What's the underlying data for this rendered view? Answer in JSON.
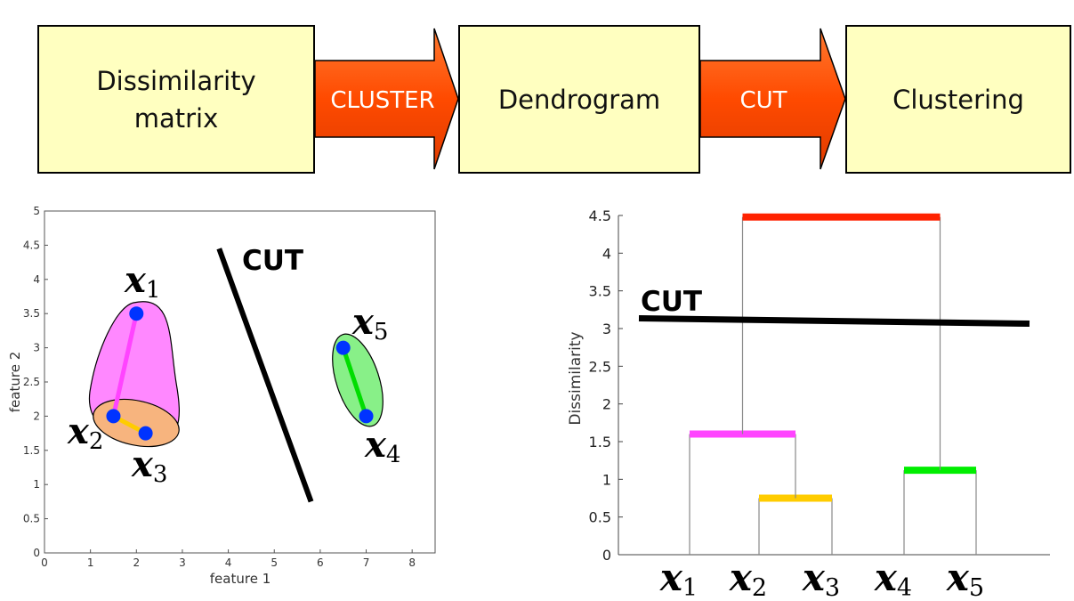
{
  "flow": {
    "box1_line1": "Dissimilarity",
    "box1_line2": "matrix",
    "arrow1": "CLUSTER",
    "box2": "Dendrogram",
    "arrow2": "CUT",
    "box3": "Clustering"
  },
  "scatter": {
    "xlabel": "feature 1",
    "ylabel": "feature 2",
    "xticks": [
      "0",
      "1",
      "2",
      "3",
      "4",
      "5",
      "6",
      "7",
      "8"
    ],
    "yticks": [
      "0",
      "0.5",
      "1",
      "1.5",
      "2",
      "2.5",
      "3",
      "3.5",
      "4",
      "4.5",
      "5"
    ],
    "cut_label": "CUT",
    "point_labels": [
      {
        "name": "x",
        "sub": "1"
      },
      {
        "name": "x",
        "sub": "2"
      },
      {
        "name": "x",
        "sub": "3"
      },
      {
        "name": "x",
        "sub": "4"
      },
      {
        "name": "x",
        "sub": "5"
      }
    ]
  },
  "dendrogram": {
    "ylabel": "Dissimilarity",
    "yticks": [
      "0",
      "0.5",
      "1",
      "1.5",
      "2",
      "2.5",
      "3",
      "3.5",
      "4",
      "4.5"
    ],
    "cut_label": "CUT",
    "leaf_labels": [
      {
        "name": "x",
        "sub": "1"
      },
      {
        "name": "x",
        "sub": "2"
      },
      {
        "name": "x",
        "sub": "3"
      },
      {
        "name": "x",
        "sub": "4"
      },
      {
        "name": "x",
        "sub": "5"
      }
    ]
  },
  "chart_data": [
    {
      "type": "scatter",
      "xlabel": "feature 1",
      "ylabel": "feature 2",
      "xlim": [
        0,
        8.5
      ],
      "ylim": [
        0,
        5
      ],
      "points": [
        {
          "label": "x1",
          "x": 2.0,
          "y": 3.5
        },
        {
          "label": "x2",
          "x": 1.5,
          "y": 2.0
        },
        {
          "label": "x3",
          "x": 2.2,
          "y": 1.75
        },
        {
          "label": "x4",
          "x": 7.0,
          "y": 2.0
        },
        {
          "label": "x5",
          "x": 6.5,
          "y": 3.0
        }
      ],
      "links": [
        {
          "from": "x1",
          "to": "x2",
          "color": "#ff44ff"
        },
        {
          "from": "x2",
          "to": "x3",
          "color": "#ffcc00"
        },
        {
          "from": "x5",
          "to": "x4",
          "color": "#00dd00"
        }
      ],
      "cut_line": {
        "x1": 3.8,
        "y1": 4.45,
        "x2": 5.8,
        "y2": 0.75
      },
      "cluster_colors": {
        "pink": "#ff88ff",
        "orange": "#f7b47e",
        "green": "#88f088"
      }
    },
    {
      "type": "dendrogram",
      "ylabel": "Dissimilarity",
      "ylim": [
        0,
        4.5
      ],
      "leaves": [
        "x1",
        "x2",
        "x3",
        "x4",
        "x5"
      ],
      "merges": [
        {
          "left": "x2",
          "right": "x3",
          "height": 0.75,
          "color": "#ffcc00"
        },
        {
          "left": "x4",
          "right": "x5",
          "height": 1.12,
          "color": "#00ee00"
        },
        {
          "left": "x1",
          "right": "{x2,x3}",
          "height": 1.6,
          "color": "#ff44ff"
        },
        {
          "left": "{x1,x2,x3}",
          "right": "{x4,x5}",
          "height": 4.48,
          "color": "#ff2200"
        }
      ],
      "cut_height": 3.1
    }
  ],
  "colors": {
    "box_fill": "#ffffc0",
    "arrow_fill": "#ff5000",
    "point": "#0033ff"
  }
}
